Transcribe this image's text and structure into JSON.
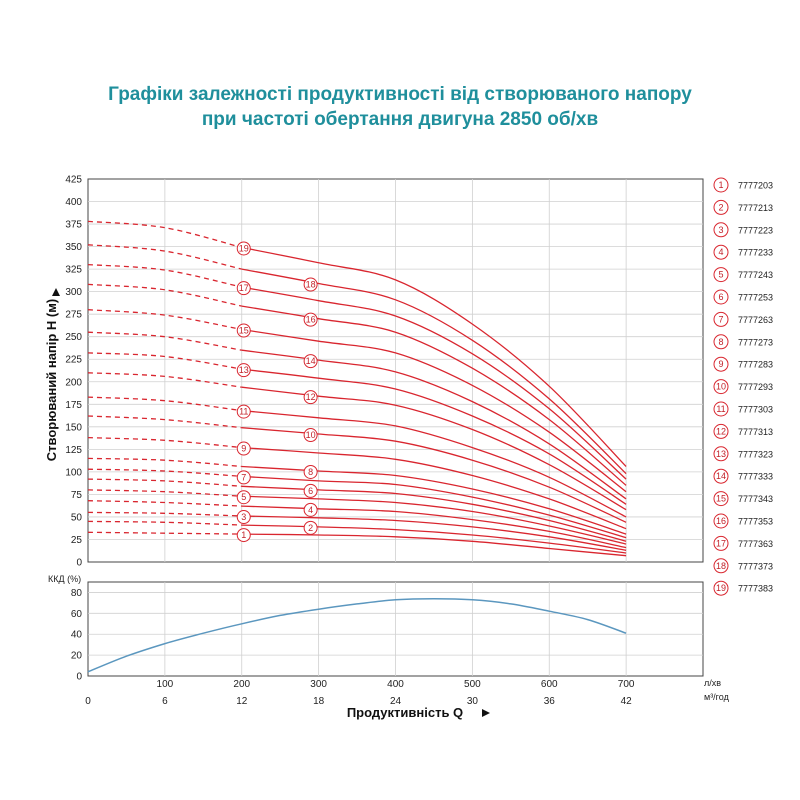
{
  "title_line1": "Графіки залежності продуктивності від створюваного напору",
  "title_line2": "при частоті обертання двигуна 2850 об/хв",
  "colors": {
    "title": "#1f8f9c",
    "curves": "#d9262f",
    "efficiency": "#5b97bf",
    "grid": "#d0d0d0"
  },
  "chart_data": [
    {
      "type": "line",
      "title": "",
      "ylabel": "Створюваний напір H (м)",
      "ylim": [
        0,
        425
      ],
      "yticks": [
        0,
        25,
        50,
        75,
        100,
        125,
        150,
        175,
        200,
        225,
        250,
        275,
        300,
        325,
        350,
        375,
        400,
        425
      ],
      "xlim": [
        0,
        800
      ],
      "x_solid_start": 200,
      "x_solid_end": 700,
      "grid": true,
      "legend_placement": "right",
      "x": [
        0,
        100,
        200,
        300,
        400,
        500,
        600,
        700
      ],
      "series": [
        {
          "name": "7777203",
          "label": "1",
          "values": [
            33,
            32,
            31,
            30,
            28,
            23,
            15,
            7
          ]
        },
        {
          "name": "7777213",
          "label": "2",
          "values": [
            45,
            44,
            41,
            39,
            36,
            30,
            21,
            10
          ]
        },
        {
          "name": "7777223",
          "label": "3",
          "values": [
            55,
            54,
            51,
            49,
            46,
            39,
            28,
            13
          ]
        },
        {
          "name": "7777233",
          "label": "4",
          "values": [
            68,
            66,
            62,
            59,
            56,
            47,
            34,
            16
          ]
        },
        {
          "name": "7777243",
          "label": "5",
          "values": [
            80,
            78,
            73,
            70,
            66,
            56,
            40,
            20
          ]
        },
        {
          "name": "7777253",
          "label": "6",
          "values": [
            92,
            90,
            84,
            80,
            76,
            64,
            46,
            23
          ]
        },
        {
          "name": "7777263",
          "label": "7",
          "values": [
            103,
            101,
            95,
            90,
            86,
            72,
            52,
            27
          ]
        },
        {
          "name": "7777273",
          "label": "8",
          "values": [
            115,
            113,
            106,
            101,
            96,
            81,
            59,
            31
          ]
        },
        {
          "name": "7777283",
          "label": "9",
          "values": [
            138,
            135,
            127,
            121,
            114,
            96,
            70,
            37
          ]
        },
        {
          "name": "7777293",
          "label": "10",
          "values": [
            162,
            158,
            149,
            142,
            134,
            113,
            83,
            44
          ]
        },
        {
          "name": "7777303",
          "label": "11",
          "values": [
            183,
            179,
            168,
            160,
            151,
            127,
            94,
            50
          ]
        },
        {
          "name": "7777313",
          "label": "12",
          "values": [
            210,
            206,
            194,
            184,
            174,
            147,
            108,
            58
          ]
        },
        {
          "name": "7777323",
          "label": "13",
          "values": [
            232,
            228,
            214,
            204,
            192,
            162,
            120,
            64
          ]
        },
        {
          "name": "7777333",
          "label": "14",
          "values": [
            255,
            250,
            235,
            224,
            211,
            178,
            131,
            70
          ]
        },
        {
          "name": "7777343",
          "label": "15",
          "values": [
            280,
            274,
            258,
            245,
            232,
            196,
            144,
            78
          ]
        },
        {
          "name": "7777353",
          "label": "16",
          "values": [
            308,
            302,
            284,
            270,
            255,
            215,
            158,
            85
          ]
        },
        {
          "name": "7777363",
          "label": "17",
          "values": [
            330,
            324,
            305,
            290,
            273,
            231,
            170,
            92
          ]
        },
        {
          "name": "7777373",
          "label": "18",
          "values": [
            352,
            345,
            325,
            309,
            291,
            246,
            181,
            98
          ]
        },
        {
          "name": "7777383",
          "label": "19",
          "values": [
            378,
            371,
            349,
            332,
            313,
            264,
            195,
            106
          ]
        }
      ]
    },
    {
      "type": "line",
      "ylabel": "ККД (%)",
      "ylim": [
        0,
        90
      ],
      "yticks": [
        0,
        20,
        40,
        60,
        80
      ],
      "grid": true,
      "x": [
        0,
        50,
        100,
        150,
        200,
        250,
        300,
        350,
        400,
        450,
        500,
        550,
        600,
        650,
        700
      ],
      "series": [
        {
          "name": "",
          "values": [
            4,
            19,
            31,
            41,
            50,
            58,
            64,
            69,
            73,
            74,
            73,
            69,
            62,
            54,
            41
          ]
        }
      ],
      "xlabel": "Продуктивність  Q",
      "x_unit1": "л/хв",
      "x_unit2": "м³/год",
      "xticks_lpm": [
        100,
        200,
        300,
        400,
        500,
        600,
        700
      ],
      "xticks_m3h": [
        0,
        6,
        12,
        18,
        24,
        30,
        36,
        42
      ]
    }
  ]
}
